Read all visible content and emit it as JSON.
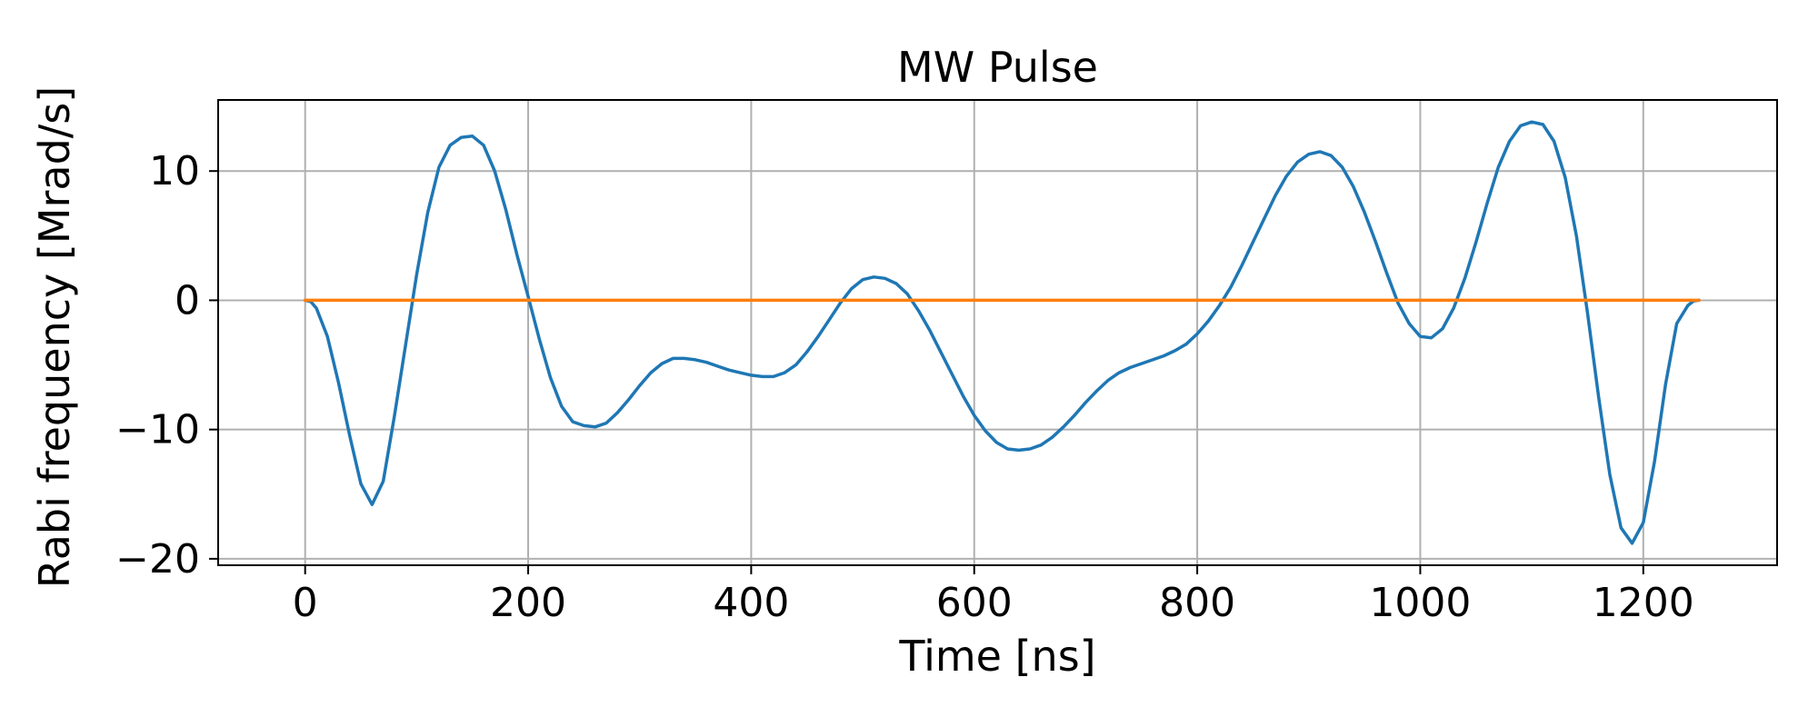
{
  "chart_data": {
    "type": "line",
    "title": "MW Pulse",
    "xlabel": "Time [ns]",
    "ylabel": "Rabi frequency [Mrad/s]",
    "xlim": [
      -78,
      1320
    ],
    "ylim": [
      -20.5,
      15.5
    ],
    "xticks": [
      0,
      200,
      400,
      600,
      800,
      1000,
      1200
    ],
    "yticks": [
      -20,
      -10,
      0,
      10
    ],
    "ytick_labels": [
      "−20",
      "−10",
      "0",
      "10"
    ],
    "grid": true,
    "legend": "none",
    "series": [
      {
        "color": "#1f77b4",
        "x": [
          0,
          5,
          10,
          20,
          30,
          40,
          50,
          60,
          70,
          80,
          90,
          100,
          110,
          120,
          130,
          140,
          150,
          160,
          170,
          180,
          190,
          200,
          210,
          220,
          230,
          240,
          250,
          260,
          270,
          280,
          290,
          300,
          310,
          320,
          330,
          340,
          350,
          360,
          370,
          380,
          390,
          400,
          410,
          420,
          430,
          440,
          450,
          460,
          470,
          480,
          490,
          500,
          510,
          520,
          530,
          540,
          550,
          560,
          570,
          580,
          590,
          600,
          610,
          620,
          630,
          640,
          650,
          660,
          670,
          680,
          690,
          700,
          710,
          720,
          730,
          740,
          750,
          760,
          770,
          780,
          790,
          800,
          810,
          820,
          830,
          840,
          850,
          860,
          870,
          880,
          890,
          900,
          910,
          920,
          930,
          940,
          950,
          960,
          970,
          980,
          990,
          1000,
          1010,
          1020,
          1030,
          1040,
          1050,
          1060,
          1070,
          1080,
          1090,
          1100,
          1110,
          1120,
          1130,
          1140,
          1150,
          1160,
          1170,
          1180,
          1190,
          1200,
          1210,
          1220,
          1230,
          1240,
          1245,
          1250
        ],
        "y": [
          0,
          -0.1,
          -0.6,
          -2.8,
          -6.4,
          -10.5,
          -14.2,
          -15.8,
          -14.0,
          -9.0,
          -3.5,
          2.0,
          6.8,
          10.3,
          12.0,
          12.6,
          12.7,
          12.0,
          10.0,
          7.0,
          3.5,
          0.3,
          -3.0,
          -6.0,
          -8.2,
          -9.4,
          -9.7,
          -9.8,
          -9.5,
          -8.7,
          -7.7,
          -6.6,
          -5.6,
          -4.9,
          -4.5,
          -4.5,
          -4.6,
          -4.8,
          -5.1,
          -5.4,
          -5.6,
          -5.8,
          -5.9,
          -5.9,
          -5.6,
          -5.0,
          -4.0,
          -2.8,
          -1.5,
          -0.2,
          0.9,
          1.6,
          1.8,
          1.7,
          1.3,
          0.5,
          -0.8,
          -2.3,
          -4.0,
          -5.7,
          -7.4,
          -8.9,
          -10.1,
          -11.0,
          -11.5,
          -11.6,
          -11.5,
          -11.2,
          -10.6,
          -9.8,
          -8.9,
          -7.9,
          -7.0,
          -6.2,
          -5.6,
          -5.2,
          -4.9,
          -4.6,
          -4.3,
          -3.9,
          -3.4,
          -2.6,
          -1.6,
          -0.4,
          1.0,
          2.7,
          4.5,
          6.3,
          8.1,
          9.6,
          10.7,
          11.3,
          11.5,
          11.2,
          10.3,
          8.8,
          6.8,
          4.5,
          2.1,
          -0.2,
          -1.8,
          -2.8,
          -2.9,
          -2.2,
          -0.6,
          1.7,
          4.5,
          7.5,
          10.3,
          12.3,
          13.5,
          13.8,
          13.6,
          12.3,
          9.5,
          5.0,
          -1.0,
          -7.5,
          -13.5,
          -17.6,
          -18.8,
          -17.2,
          -12.5,
          -6.5,
          -1.8,
          -0.4,
          -0.05,
          0
        ]
      },
      {
        "color": "#ff7f0e",
        "x": [
          0,
          1250
        ],
        "y": [
          0,
          0
        ]
      }
    ]
  }
}
